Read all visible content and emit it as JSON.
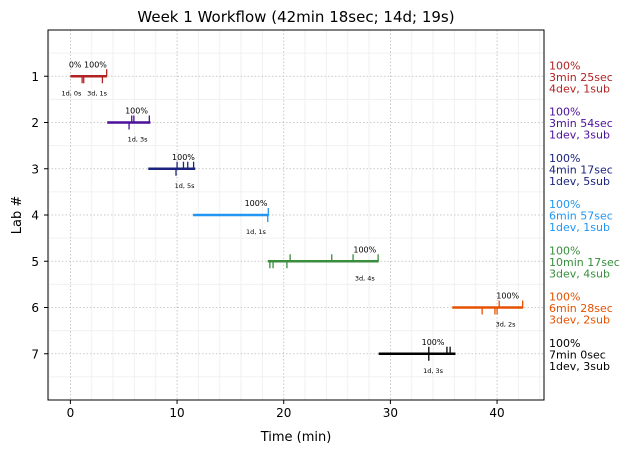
{
  "chart_data": {
    "type": "gantt",
    "title": "Week 1 Workflow (42min 18sec; 14d; 19s)",
    "xlabel": "Time (min)",
    "ylabel": "Lab #",
    "xlim": [
      -2.1,
      44.4
    ],
    "ylim": [
      8,
      0
    ],
    "xticks": [
      0,
      10,
      20,
      30,
      40
    ],
    "yticks": [
      1,
      2,
      3,
      4,
      5,
      6,
      7
    ],
    "grid": true,
    "labs": [
      {
        "lab": 1,
        "color": "#b22222",
        "start": 0.0,
        "end": 3.42,
        "up_ticks": [
          3.4
        ],
        "down_ticks": [
          1.1,
          1.25,
          3.0
        ],
        "above": [
          {
            "text": "0%",
            "x": 0.45
          },
          {
            "text": "100%",
            "x": 2.35
          }
        ],
        "below": [
          {
            "text": "1d, 0s",
            "x": 0.1
          },
          {
            "text": "3d, 1s",
            "x": 2.5
          }
        ],
        "summary": [
          "100%",
          "3min 25sec",
          "4dev, 1sub"
        ]
      },
      {
        "lab": 2,
        "color": "#4b0f9a",
        "start": 3.45,
        "end": 7.5,
        "up_ticks": [
          5.75,
          5.95,
          7.4
        ],
        "down_ticks": [
          5.5
        ],
        "above": [
          {
            "text": "100%",
            "x": 6.2
          }
        ],
        "below": [
          {
            "text": "1d, 3s",
            "x": 6.3
          }
        ],
        "summary": [
          "100%",
          "3min 54sec",
          "1dev, 3sub"
        ]
      },
      {
        "lab": 3,
        "color": "#1a237e",
        "start": 7.3,
        "end": 11.7,
        "up_ticks": [
          10.0,
          10.6,
          11.0,
          11.55
        ],
        "down_ticks": [
          9.9
        ],
        "above": [
          {
            "text": "100%",
            "x": 10.6
          }
        ],
        "below": [
          {
            "text": "1d, 5s",
            "x": 10.7
          }
        ],
        "summary": [
          "100%",
          "4min 17sec",
          "1dev, 5sub"
        ]
      },
      {
        "lab": 4,
        "color": "#2196f3",
        "start": 11.5,
        "end": 18.6,
        "up_ticks": [
          18.55
        ],
        "down_ticks": [
          18.5
        ],
        "above": [
          {
            "text": "100%",
            "x": 17.4
          }
        ],
        "below": [
          {
            "text": "1d, 1s",
            "x": 17.4
          }
        ],
        "summary": [
          "100%",
          "6min 57sec",
          "1dev, 1sub"
        ]
      },
      {
        "lab": 5,
        "color": "#388e3c",
        "start": 18.5,
        "end": 28.9,
        "up_ticks": [
          20.6,
          24.5,
          26.5,
          28.85
        ],
        "down_ticks": [
          18.7,
          19.0,
          20.3
        ],
        "above": [
          {
            "text": "100%",
            "x": 27.6
          }
        ],
        "below": [
          {
            "text": "3d, 4s",
            "x": 27.6
          }
        ],
        "summary": [
          "100%",
          "10min 17sec",
          "3dev, 4sub"
        ]
      },
      {
        "lab": 6,
        "color": "#e65100",
        "start": 35.8,
        "end": 42.45,
        "up_ticks": [
          40.2,
          42.4
        ],
        "down_ticks": [
          38.6,
          39.8,
          40.0
        ],
        "above": [
          {
            "text": "100%",
            "x": 41.0
          }
        ],
        "below": [
          {
            "text": "3d, 2s",
            "x": 40.8
          }
        ],
        "summary": [
          "100%",
          "6min 28sec",
          "3dev, 2sub"
        ]
      },
      {
        "lab": 7,
        "color": "#000000",
        "start": 28.9,
        "end": 36.1,
        "up_ticks": [
          33.6,
          35.3,
          35.6
        ],
        "down_ticks": [
          33.6
        ],
        "above": [
          {
            "text": "100%",
            "x": 34.0
          }
        ],
        "below": [
          {
            "text": "1d, 3s",
            "x": 34.0
          }
        ],
        "summary": [
          "100%",
          "7min 0sec",
          "1dev, 3sub"
        ]
      }
    ]
  }
}
